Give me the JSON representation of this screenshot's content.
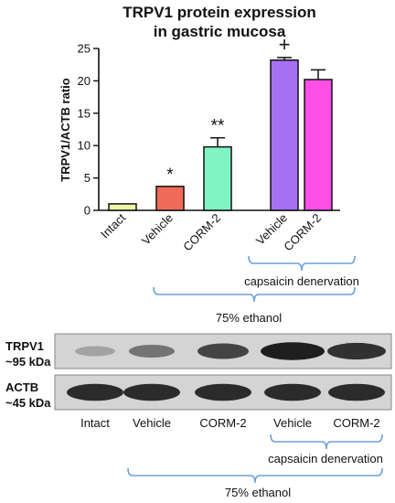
{
  "chart_data": {
    "type": "bar",
    "title": "TRPV1 protein expression",
    "subtitle": "in gastric mucosa",
    "ylabel": "TRPV1/ACTB ratio",
    "xlabel": "",
    "ylim": [
      0,
      25
    ],
    "yticks": [
      0,
      5,
      10,
      15,
      20,
      25
    ],
    "grid": false,
    "categories": [
      "Intact",
      "Vehicle",
      "CORM-2",
      "Vehicle",
      "CORM-2"
    ],
    "values": [
      1.0,
      3.7,
      9.8,
      23.2,
      20.2
    ],
    "errors": [
      0,
      0,
      1.4,
      0.4,
      1.5
    ],
    "colors": [
      "#eef7a6",
      "#f26a5a",
      "#7ff5c4",
      "#a570f2",
      "#ff4fe6"
    ],
    "significance": [
      "",
      "*",
      "**",
      "+",
      ""
    ],
    "groups": [
      {
        "label": "capsaicin denervation",
        "categories": [
          3,
          4
        ]
      },
      {
        "label": "75% ethanol",
        "categories": [
          1,
          2,
          3,
          4
        ]
      }
    ]
  },
  "blot": {
    "rows": [
      {
        "name": "TRPV1",
        "size": "~95 kDa",
        "intensities": [
          0.25,
          0.5,
          0.75,
          0.95,
          0.85
        ]
      },
      {
        "name": "ACTB",
        "size": "~45 kDa",
        "intensities": [
          0.88,
          0.88,
          0.88,
          0.88,
          0.88
        ]
      }
    ],
    "lanes": [
      "Intact",
      "Vehicle",
      "CORM-2",
      "Vehicle",
      "CORM-2"
    ],
    "bracket_labels": [
      "capsaicin denervation",
      "75% ethanol"
    ]
  },
  "colors": {
    "bracket": "#6aa0d8",
    "axis": "#111111"
  }
}
